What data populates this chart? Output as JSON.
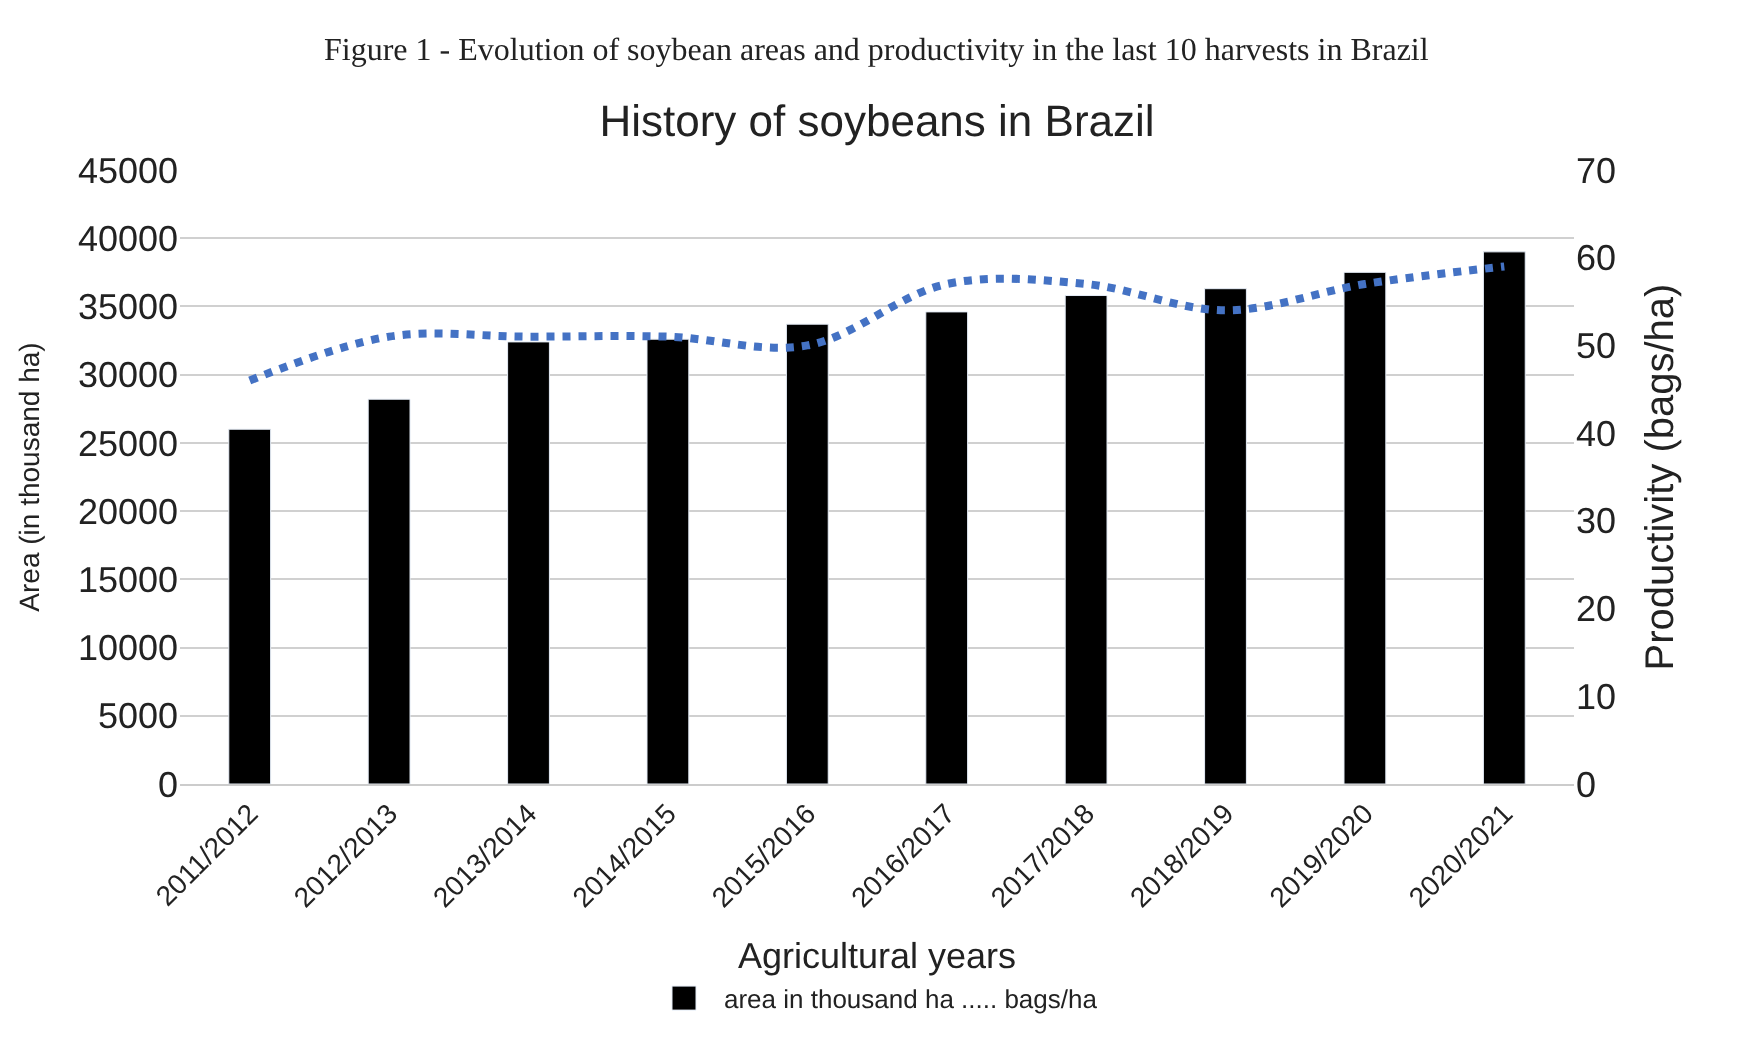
{
  "chart_data": {
    "type": "bar",
    "title": "History of soybeans in Brazil",
    "annotations": [
      "Figure 1 - Evolution of soybean areas and productivity in the last 10 harvests in Brazil"
    ],
    "xlabel": "Agricultural years",
    "ylabel": "Area (in thousand ha)",
    "y2label": "Productivity (bags/ha)",
    "categories": [
      "2011/2012",
      "2012/2013",
      "2013/2014",
      "2014/2015",
      "2015/2016",
      "2016/2017",
      "2017/2018",
      "2018/2019",
      "2019/2020",
      "2020/2021"
    ],
    "series": [
      {
        "name": "area in thousand ha ..... bags/ha",
        "color": "#000000",
        "values": [
          26000,
          28200,
          32400,
          32600,
          33700,
          34600,
          35800,
          36300,
          37500,
          39000
        ]
      },
      {
        "type": "line",
        "axis": "y2",
        "color": "#4472c4",
        "line_style": "dotted",
        "values": [
          46,
          51,
          51,
          51,
          50,
          57,
          57,
          54,
          57,
          59
        ]
      }
    ],
    "ylim": [
      0,
      45000
    ],
    "yticks": [
      0,
      5000,
      10000,
      15000,
      20000,
      25000,
      30000,
      35000,
      40000,
      45000
    ],
    "y2lim": [
      0,
      70
    ],
    "y2ticks": [
      0,
      10,
      20,
      30,
      40,
      50,
      60,
      70
    ],
    "grid": "y",
    "legend": "bottom"
  }
}
